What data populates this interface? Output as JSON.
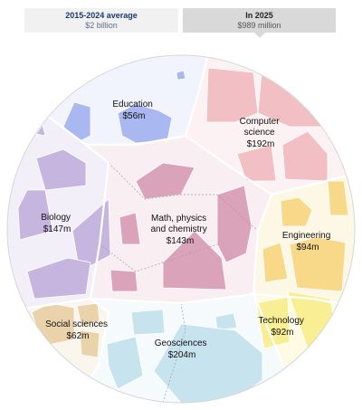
{
  "toggle": {
    "average": {
      "title": "2015-2024 average",
      "value": "$2 billion"
    },
    "current": {
      "title": "In 2025",
      "value": "$989 million"
    }
  },
  "colors": {
    "education": "#a9b8f0",
    "computer_science": "#f1b9bf",
    "engineering": "#f8d98a",
    "technology": "#f9ee94",
    "geosciences": "#c7e3ee",
    "social_sciences": "#ead2ab",
    "biology": "#c6b6df",
    "math": "#dba3b9"
  },
  "chart_data": {
    "type": "voronoi-treemap",
    "unit": "$",
    "series": [
      {
        "name": "Education",
        "amount_label": "$56m",
        "value": 56,
        "color_key": "education"
      },
      {
        "name": "Computer science",
        "amount_label": "$192m",
        "value": 192,
        "color_key": "computer_science"
      },
      {
        "name": "Biology",
        "amount_label": "$147m",
        "value": 147,
        "color_key": "biology"
      },
      {
        "name": "Math, physics and chemistry",
        "amount_label": "$143m",
        "value": 143,
        "color_key": "math"
      },
      {
        "name": "Engineering",
        "amount_label": "$94m",
        "value": 94,
        "color_key": "engineering"
      },
      {
        "name": "Social sciences",
        "amount_label": "$62m",
        "value": 62,
        "color_key": "social_sciences"
      },
      {
        "name": "Technology",
        "amount_label": "$92m",
        "value": 92,
        "color_key": "technology"
      },
      {
        "name": "Geosciences",
        "amount_label": "$204m",
        "value": 204,
        "color_key": "geosciences"
      }
    ],
    "label_lines": {
      "education": [
        "Education",
        "$56m"
      ],
      "computer_science": [
        "Computer",
        "science",
        "$192m"
      ],
      "biology": [
        "Biology",
        "$147m"
      ],
      "math": [
        "Math, physics",
        "and chemistry",
        "$143m"
      ],
      "engineering": [
        "Engineering",
        "$94m"
      ],
      "social_sciences": [
        "Social sciences",
        "$62m"
      ],
      "technology": [
        "Technology",
        "$92m"
      ],
      "geosciences": [
        "Geosciences",
        "$204m"
      ]
    }
  }
}
